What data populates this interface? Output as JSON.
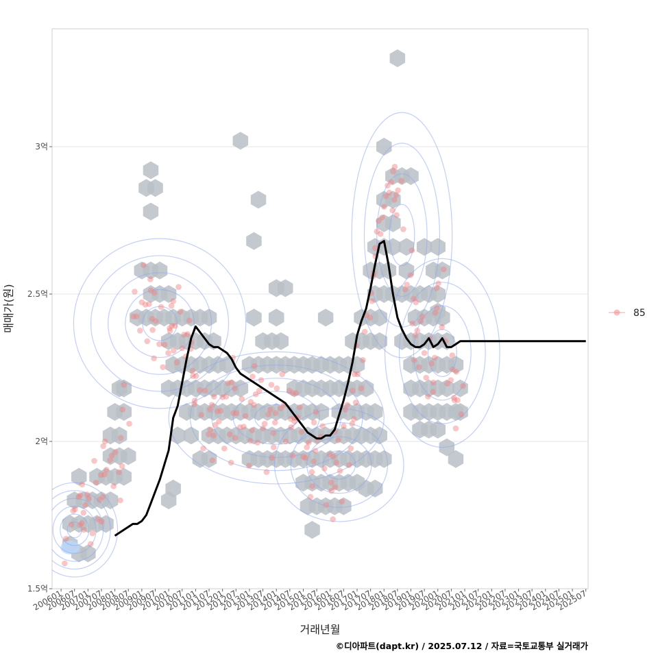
{
  "chart_data": {
    "type": "scatter",
    "xlabel": "거래년월",
    "ylabel": "매매가(원)",
    "caption": "©디아파트(dapt.kr) / 2025.07.12 / 자료=국토교통부 실거래가",
    "legend": {
      "label": "85",
      "placement": "right"
    },
    "x_tick_labels": [
      "200601",
      "200607",
      "200701",
      "200707",
      "200801",
      "200807",
      "200901",
      "200907",
      "201001",
      "201007",
      "201101",
      "201107",
      "201201",
      "201207",
      "201301",
      "201307",
      "201401",
      "201407",
      "201501",
      "201507",
      "201601",
      "201607",
      "201701",
      "201707",
      "201801",
      "201807",
      "201901",
      "201907",
      "202001",
      "202007",
      "202101",
      "202107",
      "202201",
      "202207",
      "202301",
      "202307",
      "202401",
      "202407",
      "202501",
      "202507"
    ],
    "x_range_months_since_200601": [
      -4,
      235
    ],
    "y_ticks": [
      {
        "value": 1.5,
        "label": "1.5억"
      },
      {
        "value": 2.0,
        "label": "2억"
      },
      {
        "value": 2.5,
        "label": "2.5억"
      },
      {
        "value": 3.0,
        "label": "3억"
      }
    ],
    "y_range_eok": [
      1.5,
      3.4
    ],
    "grid": true,
    "trend_line": {
      "name": "moving average",
      "x_month_index": [
        24,
        26,
        28,
        30,
        32,
        34,
        36,
        38,
        40,
        42,
        44,
        46,
        48,
        50,
        52,
        54,
        56,
        58,
        60,
        62,
        64,
        66,
        68,
        70,
        72,
        74,
        76,
        78,
        80,
        82,
        84,
        86,
        88,
        90,
        92,
        94,
        96,
        98,
        100,
        102,
        104,
        106,
        108,
        110,
        112,
        114,
        116,
        118,
        120,
        122,
        124,
        126,
        128,
        130,
        132,
        134,
        136,
        138,
        140,
        142,
        144,
        146,
        148,
        150,
        152,
        154,
        156,
        158,
        160,
        162,
        164,
        166,
        168,
        170,
        172,
        174,
        176,
        178,
        180,
        182,
        184,
        186,
        188,
        190,
        192,
        194,
        196,
        198,
        200,
        202,
        204,
        206,
        208,
        210,
        212,
        214,
        216,
        218,
        220,
        222,
        224,
        226,
        228,
        230,
        232,
        234
      ],
      "y_eok": [
        1.68,
        1.69,
        1.7,
        1.71,
        1.72,
        1.72,
        1.73,
        1.75,
        1.79,
        1.83,
        1.87,
        1.92,
        1.97,
        2.08,
        2.12,
        2.2,
        2.28,
        2.35,
        2.39,
        2.37,
        2.35,
        2.33,
        2.32,
        2.32,
        2.31,
        2.3,
        2.28,
        2.25,
        2.23,
        2.22,
        2.21,
        2.2,
        2.19,
        2.18,
        2.17,
        2.16,
        2.15,
        2.14,
        2.13,
        2.11,
        2.09,
        2.07,
        2.05,
        2.03,
        2.02,
        2.01,
        2.01,
        2.02,
        2.02,
        2.04,
        2.09,
        2.14,
        2.2,
        2.27,
        2.36,
        2.41,
        2.45,
        2.52,
        2.6,
        2.67,
        2.68,
        2.6,
        2.5,
        2.42,
        2.38,
        2.35,
        2.33,
        2.32,
        2.32,
        2.33,
        2.35,
        2.32,
        2.33,
        2.35,
        2.32,
        2.32,
        2.33,
        2.34,
        2.34,
        2.34,
        2.34,
        2.34,
        2.34,
        2.34,
        2.34,
        2.34,
        2.34,
        2.34,
        2.34,
        2.34,
        2.34,
        2.34,
        2.34,
        2.34,
        2.34,
        2.34,
        2.34,
        2.34,
        2.34,
        2.34,
        2.34,
        2.34,
        2.34,
        2.34,
        2.34,
        2.34
      ]
    },
    "hexbin_cells_month_eok": [
      [
        4,
        1.65
      ],
      [
        8,
        1.62
      ],
      [
        12,
        1.62
      ],
      [
        4,
        1.72
      ],
      [
        8,
        1.72
      ],
      [
        12,
        1.72
      ],
      [
        16,
        1.72
      ],
      [
        20,
        1.72
      ],
      [
        6,
        1.8
      ],
      [
        10,
        1.8
      ],
      [
        14,
        1.8
      ],
      [
        18,
        1.8
      ],
      [
        22,
        1.8
      ],
      [
        8,
        1.88
      ],
      [
        16,
        1.88
      ],
      [
        20,
        1.88
      ],
      [
        24,
        1.88
      ],
      [
        28,
        1.88
      ],
      [
        22,
        1.95
      ],
      [
        26,
        1.95
      ],
      [
        30,
        1.95
      ],
      [
        22,
        2.02
      ],
      [
        26,
        2.02
      ],
      [
        28,
        2.1
      ],
      [
        24,
        2.1
      ],
      [
        28,
        2.18
      ],
      [
        26,
        2.18
      ],
      [
        34,
        2.42
      ],
      [
        38,
        2.42
      ],
      [
        42,
        2.42
      ],
      [
        40,
        2.5
      ],
      [
        44,
        2.5
      ],
      [
        36,
        2.58
      ],
      [
        40,
        2.58
      ],
      [
        44,
        2.58
      ],
      [
        48,
        2.5
      ],
      [
        46,
        2.42
      ],
      [
        50,
        2.42
      ],
      [
        54,
        2.42
      ],
      [
        58,
        2.42
      ],
      [
        62,
        2.42
      ],
      [
        66,
        2.42
      ],
      [
        48,
        2.34
      ],
      [
        52,
        2.34
      ],
      [
        56,
        2.34
      ],
      [
        60,
        2.34
      ],
      [
        64,
        2.34
      ],
      [
        68,
        2.34
      ],
      [
        50,
        2.26
      ],
      [
        54,
        2.26
      ],
      [
        58,
        2.26
      ],
      [
        62,
        2.26
      ],
      [
        66,
        2.26
      ],
      [
        70,
        2.26
      ],
      [
        74,
        2.26
      ],
      [
        48,
        2.18
      ],
      [
        52,
        2.18
      ],
      [
        56,
        2.18
      ],
      [
        60,
        2.18
      ],
      [
        64,
        2.18
      ],
      [
        68,
        2.18
      ],
      [
        72,
        2.18
      ],
      [
        76,
        2.18
      ],
      [
        80,
        2.18
      ],
      [
        56,
        2.1
      ],
      [
        60,
        2.1
      ],
      [
        64,
        2.1
      ],
      [
        68,
        2.1
      ],
      [
        72,
        2.1
      ],
      [
        76,
        2.1
      ],
      [
        80,
        2.1
      ],
      [
        84,
        2.1
      ],
      [
        88,
        2.1
      ],
      [
        92,
        2.1
      ],
      [
        96,
        2.1
      ],
      [
        100,
        2.1
      ],
      [
        52,
        2.02
      ],
      [
        58,
        2.02
      ],
      [
        66,
        2.02
      ],
      [
        70,
        2.02
      ],
      [
        74,
        2.02
      ],
      [
        78,
        2.02
      ],
      [
        82,
        2.02
      ],
      [
        86,
        2.02
      ],
      [
        90,
        2.02
      ],
      [
        94,
        2.02
      ],
      [
        98,
        2.02
      ],
      [
        102,
        2.02
      ],
      [
        106,
        2.02
      ],
      [
        62,
        1.94
      ],
      [
        66,
        1.94
      ],
      [
        84,
        1.94
      ],
      [
        88,
        1.94
      ],
      [
        92,
        1.94
      ],
      [
        96,
        1.94
      ],
      [
        100,
        1.94
      ],
      [
        104,
        1.94
      ],
      [
        108,
        1.94
      ],
      [
        112,
        1.94
      ],
      [
        116,
        1.94
      ],
      [
        120,
        1.94
      ],
      [
        124,
        1.94
      ],
      [
        48,
        1.8
      ],
      [
        50,
        1.84
      ],
      [
        108,
        1.86
      ],
      [
        112,
        1.86
      ],
      [
        116,
        1.86
      ],
      [
        120,
        1.86
      ],
      [
        124,
        1.86
      ],
      [
        128,
        1.86
      ],
      [
        132,
        1.86
      ],
      [
        110,
        1.78
      ],
      [
        114,
        1.78
      ],
      [
        118,
        1.78
      ],
      [
        122,
        1.78
      ],
      [
        126,
        1.78
      ],
      [
        112,
        1.7
      ],
      [
        84,
        2.26
      ],
      [
        88,
        2.26
      ],
      [
        92,
        2.26
      ],
      [
        96,
        2.26
      ],
      [
        100,
        2.26
      ],
      [
        104,
        2.26
      ],
      [
        108,
        2.26
      ],
      [
        112,
        2.26
      ],
      [
        116,
        2.26
      ],
      [
        120,
        2.26
      ],
      [
        124,
        2.26
      ],
      [
        128,
        2.26
      ],
      [
        132,
        2.26
      ],
      [
        90,
        2.34
      ],
      [
        94,
        2.34
      ],
      [
        98,
        2.34
      ],
      [
        86,
        2.42
      ],
      [
        96,
        2.52
      ],
      [
        100,
        2.52
      ],
      [
        118,
        2.42
      ],
      [
        104,
        2.18
      ],
      [
        108,
        2.18
      ],
      [
        112,
        2.18
      ],
      [
        116,
        2.18
      ],
      [
        120,
        2.18
      ],
      [
        124,
        2.18
      ],
      [
        128,
        2.18
      ],
      [
        132,
        2.18
      ],
      [
        136,
        2.18
      ],
      [
        104,
        2.1
      ],
      [
        108,
        2.1
      ],
      [
        112,
        2.1
      ],
      [
        116,
        2.1
      ],
      [
        124,
        2.1
      ],
      [
        128,
        2.1
      ],
      [
        132,
        2.1
      ],
      [
        136,
        2.1
      ],
      [
        140,
        2.1
      ],
      [
        110,
        2.02
      ],
      [
        114,
        2.02
      ],
      [
        118,
        2.02
      ],
      [
        122,
        2.02
      ],
      [
        126,
        2.02
      ],
      [
        130,
        2.02
      ],
      [
        134,
        2.02
      ],
      [
        138,
        2.02
      ],
      [
        142,
        2.02
      ],
      [
        128,
        1.94
      ],
      [
        132,
        1.94
      ],
      [
        136,
        1.94
      ],
      [
        140,
        1.94
      ],
      [
        144,
        1.94
      ],
      [
        136,
        1.84
      ],
      [
        140,
        1.84
      ],
      [
        130,
        2.34
      ],
      [
        134,
        2.34
      ],
      [
        138,
        2.34
      ],
      [
        142,
        2.34
      ],
      [
        134,
        2.42
      ],
      [
        138,
        2.42
      ],
      [
        142,
        2.42
      ],
      [
        140,
        2.5
      ],
      [
        144,
        2.5
      ],
      [
        138,
        2.58
      ],
      [
        142,
        2.58
      ],
      [
        146,
        2.58
      ],
      [
        140,
        2.66
      ],
      [
        144,
        2.66
      ],
      [
        148,
        2.66
      ],
      [
        144,
        2.74
      ],
      [
        148,
        2.74
      ],
      [
        144,
        2.82
      ],
      [
        148,
        2.82
      ],
      [
        148,
        2.9
      ],
      [
        152,
        2.9
      ],
      [
        156,
        2.9
      ],
      [
        144,
        3.0
      ],
      [
        150,
        3.3
      ],
      [
        148,
        2.5
      ],
      [
        152,
        2.5
      ],
      [
        156,
        2.5
      ],
      [
        160,
        2.5
      ],
      [
        164,
        2.5
      ],
      [
        168,
        2.5
      ],
      [
        170,
        2.58
      ],
      [
        166,
        2.58
      ],
      [
        168,
        2.66
      ],
      [
        168,
        2.44
      ],
      [
        162,
        2.66
      ],
      [
        158,
        2.42
      ],
      [
        162,
        2.42
      ],
      [
        166,
        2.42
      ],
      [
        170,
        2.42
      ],
      [
        152,
        2.34
      ],
      [
        156,
        2.34
      ],
      [
        160,
        2.34
      ],
      [
        164,
        2.34
      ],
      [
        168,
        2.34
      ],
      [
        172,
        2.34
      ],
      [
        156,
        2.26
      ],
      [
        160,
        2.26
      ],
      [
        164,
        2.26
      ],
      [
        168,
        2.26
      ],
      [
        172,
        2.26
      ],
      [
        176,
        2.26
      ],
      [
        178,
        2.18
      ],
      [
        156,
        2.18
      ],
      [
        160,
        2.18
      ],
      [
        164,
        2.18
      ],
      [
        168,
        2.18
      ],
      [
        172,
        2.18
      ],
      [
        156,
        2.1
      ],
      [
        160,
        2.1
      ],
      [
        164,
        2.1
      ],
      [
        168,
        2.1
      ],
      [
        172,
        2.1
      ],
      [
        176,
        2.1
      ],
      [
        160,
        2.04
      ],
      [
        164,
        2.04
      ],
      [
        168,
        2.04
      ],
      [
        172,
        1.98
      ],
      [
        176,
        1.94
      ],
      [
        178,
        2.1
      ],
      [
        154,
        2.66
      ],
      [
        154,
        2.58
      ],
      [
        40,
        2.78
      ],
      [
        38,
        2.86
      ],
      [
        42,
        2.86
      ],
      [
        40,
        2.92
      ],
      [
        80,
        3.02
      ],
      [
        88,
        2.82
      ],
      [
        86,
        2.68
      ],
      [
        96,
        2.42
      ]
    ],
    "density_contours_note": "Blue 2D density contours overlaying the transactions.",
    "sample_points_month_eok": [
      [
        4,
        1.67
      ],
      [
        6,
        1.74
      ],
      [
        8,
        1.77
      ],
      [
        10,
        1.83
      ],
      [
        12,
        1.7
      ],
      [
        14,
        1.76
      ],
      [
        16,
        1.85
      ],
      [
        18,
        1.8
      ],
      [
        20,
        1.9
      ],
      [
        22,
        1.94
      ],
      [
        24,
        1.86
      ],
      [
        26,
        2.0
      ],
      [
        28,
        2.12
      ],
      [
        34,
        2.46
      ],
      [
        36,
        2.4
      ],
      [
        38,
        2.55
      ],
      [
        40,
        2.44
      ],
      [
        42,
        2.33
      ],
      [
        44,
        2.48
      ],
      [
        46,
        2.3
      ],
      [
        48,
        2.4
      ],
      [
        50,
        2.44
      ],
      [
        52,
        2.38
      ],
      [
        54,
        2.28
      ],
      [
        56,
        2.35
      ],
      [
        58,
        2.3
      ],
      [
        60,
        2.21
      ],
      [
        62,
        2.15
      ],
      [
        64,
        2.06
      ],
      [
        66,
        2.1
      ],
      [
        68,
        2.02
      ],
      [
        70,
        2.08
      ],
      [
        72,
        2.15
      ],
      [
        74,
        2.0
      ],
      [
        76,
        2.2
      ],
      [
        78,
        2.12
      ],
      [
        80,
        2.06
      ],
      [
        82,
        1.99
      ],
      [
        84,
        2.05
      ],
      [
        86,
        2.16
      ],
      [
        88,
        2.22
      ],
      [
        90,
        2.08
      ],
      [
        92,
        2.12
      ],
      [
        94,
        1.98
      ],
      [
        96,
        2.04
      ],
      [
        98,
        2.18
      ],
      [
        100,
        2.1
      ],
      [
        102,
        2.0
      ],
      [
        104,
        2.14
      ],
      [
        106,
        2.08
      ],
      [
        108,
        2.02
      ],
      [
        110,
        1.86
      ],
      [
        112,
        1.92
      ],
      [
        114,
        1.98
      ],
      [
        116,
        2.04
      ],
      [
        118,
        1.92
      ],
      [
        120,
        1.82
      ],
      [
        122,
        1.96
      ],
      [
        124,
        1.88
      ],
      [
        126,
        1.98
      ],
      [
        128,
        2.06
      ],
      [
        130,
        2.1
      ],
      [
        132,
        2.18
      ],
      [
        134,
        2.3
      ],
      [
        136,
        2.42
      ],
      [
        138,
        2.5
      ],
      [
        140,
        2.62
      ],
      [
        142,
        2.7
      ],
      [
        144,
        2.76
      ],
      [
        146,
        2.82
      ],
      [
        148,
        2.88
      ],
      [
        150,
        2.92
      ],
      [
        152,
        2.78
      ],
      [
        154,
        2.6
      ],
      [
        156,
        2.46
      ],
      [
        158,
        2.36
      ],
      [
        160,
        2.4
      ],
      [
        162,
        2.3
      ],
      [
        164,
        2.24
      ],
      [
        166,
        2.2
      ],
      [
        168,
        2.46
      ],
      [
        170,
        2.5
      ],
      [
        172,
        2.28
      ],
      [
        174,
        2.16
      ],
      [
        176,
        2.08
      ],
      [
        178,
        2.2
      ]
    ]
  }
}
